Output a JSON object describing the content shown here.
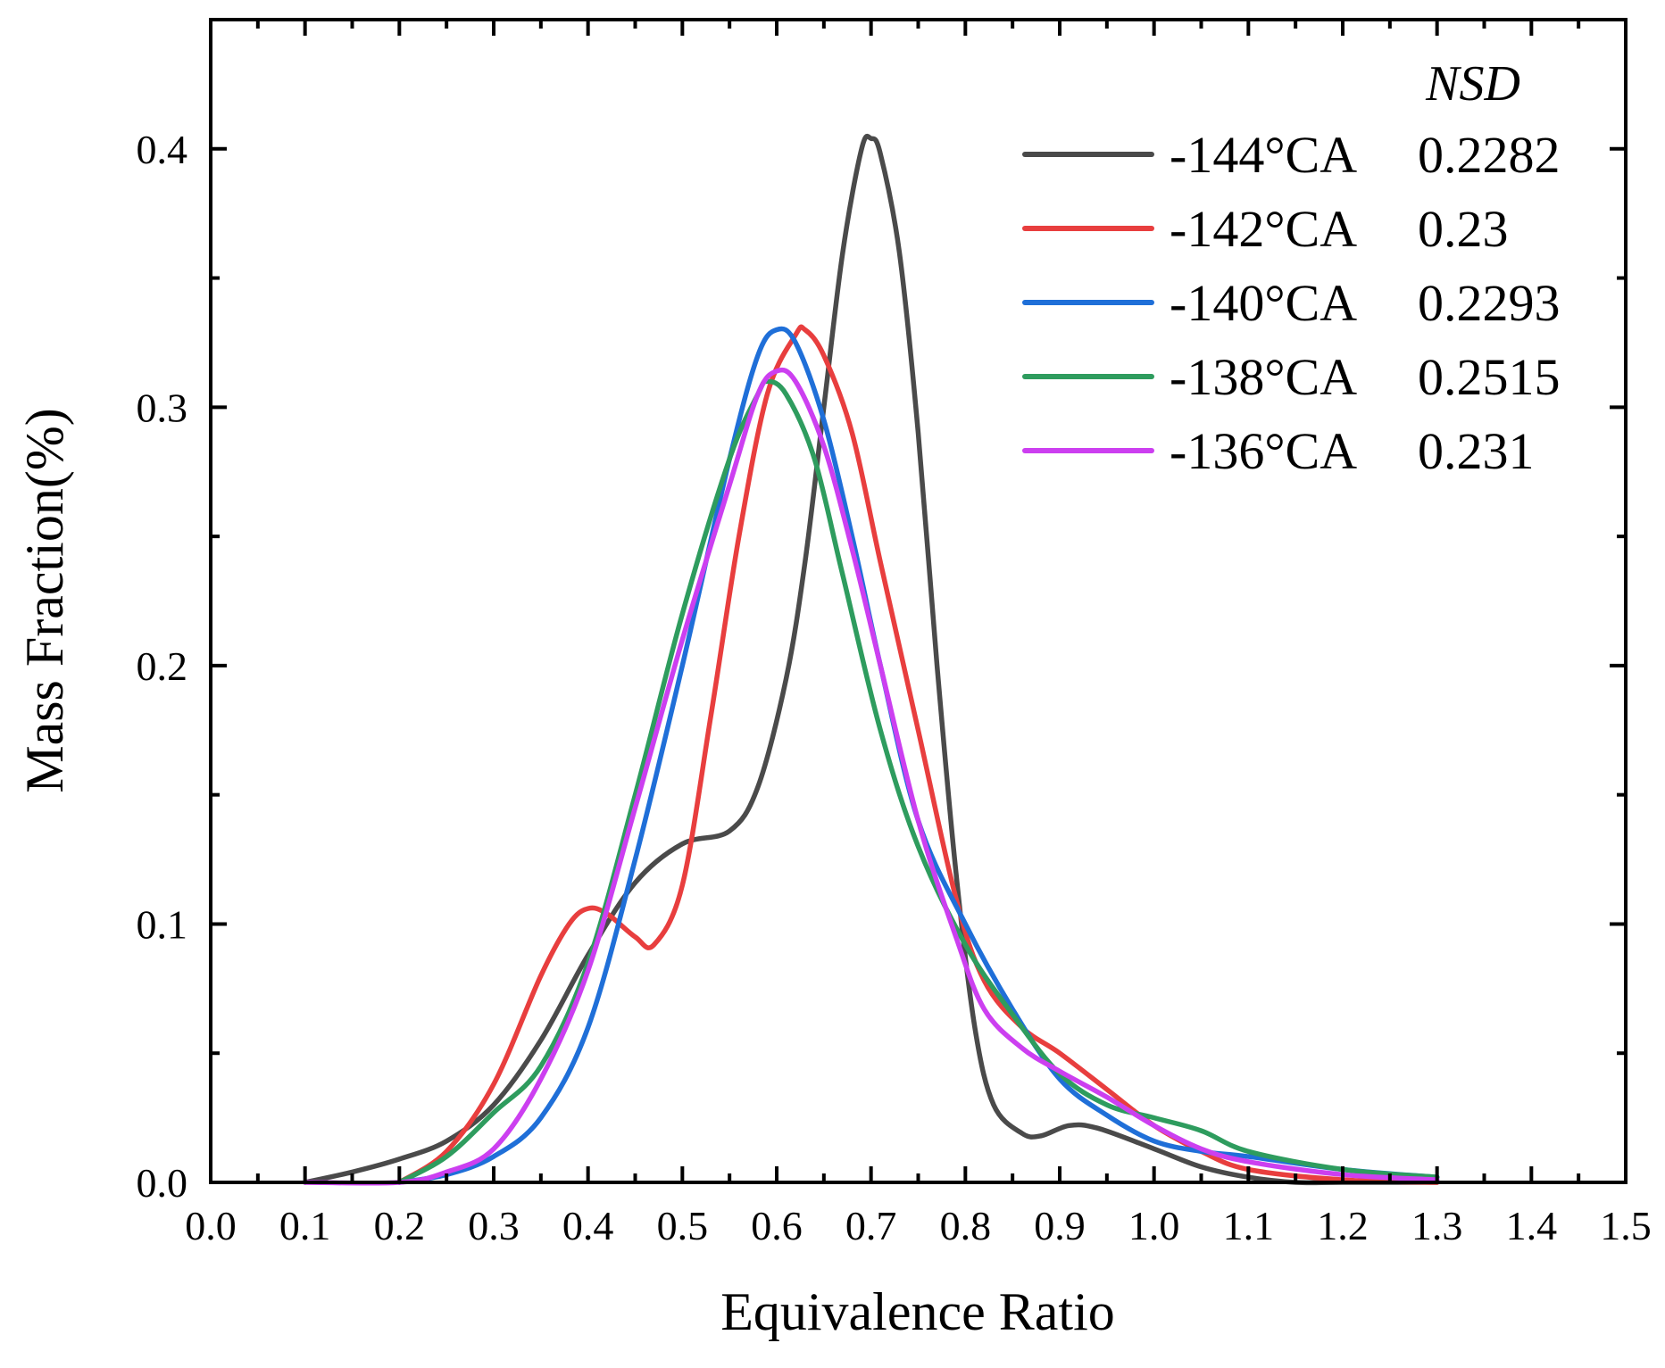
{
  "chart_data": {
    "type": "line",
    "title": "",
    "xlabel": "Equivalence Ratio",
    "ylabel": "Mass Fraction(%)",
    "xlim": [
      0.0,
      1.5
    ],
    "ylim": [
      0.0,
      0.45
    ],
    "x_ticks": [
      "0.0",
      "0.1",
      "0.2",
      "0.3",
      "0.4",
      "0.5",
      "0.6",
      "0.7",
      "0.8",
      "0.9",
      "1.0",
      "1.1",
      "1.2",
      "1.3",
      "1.4",
      "1.5"
    ],
    "y_ticks": [
      "0.0",
      "0.1",
      "0.2",
      "0.3",
      "0.4"
    ],
    "grid": false,
    "legend_placement": "top-right",
    "legend_title": "NSD",
    "series": [
      {
        "name": "-144°CA",
        "nsd": "0.2282",
        "color": "#4a4a4a",
        "points": [
          [
            0.1,
            0.0
          ],
          [
            0.15,
            0.004
          ],
          [
            0.2,
            0.009
          ],
          [
            0.25,
            0.016
          ],
          [
            0.3,
            0.03
          ],
          [
            0.35,
            0.055
          ],
          [
            0.4,
            0.088
          ],
          [
            0.45,
            0.116
          ],
          [
            0.5,
            0.131
          ],
          [
            0.55,
            0.136
          ],
          [
            0.58,
            0.153
          ],
          [
            0.61,
            0.195
          ],
          [
            0.63,
            0.24
          ],
          [
            0.65,
            0.3
          ],
          [
            0.67,
            0.36
          ],
          [
            0.69,
            0.4
          ],
          [
            0.7,
            0.404
          ],
          [
            0.71,
            0.398
          ],
          [
            0.73,
            0.36
          ],
          [
            0.75,
            0.29
          ],
          [
            0.77,
            0.2
          ],
          [
            0.79,
            0.12
          ],
          [
            0.81,
            0.06
          ],
          [
            0.83,
            0.03
          ],
          [
            0.86,
            0.019
          ],
          [
            0.88,
            0.018
          ],
          [
            0.91,
            0.022
          ],
          [
            0.94,
            0.021
          ],
          [
            1.0,
            0.013
          ],
          [
            1.05,
            0.006
          ],
          [
            1.1,
            0.002
          ],
          [
            1.15,
            0.0
          ],
          [
            1.2,
            0.0
          ],
          [
            1.3,
            0.0
          ]
        ]
      },
      {
        "name": "-142°CA",
        "nsd": "0.23",
        "color": "#e83e3e",
        "points": [
          [
            0.2,
            0.0
          ],
          [
            0.25,
            0.012
          ],
          [
            0.3,
            0.038
          ],
          [
            0.35,
            0.08
          ],
          [
            0.38,
            0.1
          ],
          [
            0.4,
            0.106
          ],
          [
            0.42,
            0.104
          ],
          [
            0.45,
            0.095
          ],
          [
            0.47,
            0.092
          ],
          [
            0.5,
            0.115
          ],
          [
            0.53,
            0.18
          ],
          [
            0.56,
            0.25
          ],
          [
            0.59,
            0.305
          ],
          [
            0.62,
            0.328
          ],
          [
            0.63,
            0.33
          ],
          [
            0.65,
            0.32
          ],
          [
            0.68,
            0.29
          ],
          [
            0.71,
            0.24
          ],
          [
            0.75,
            0.175
          ],
          [
            0.79,
            0.11
          ],
          [
            0.82,
            0.078
          ],
          [
            0.86,
            0.06
          ],
          [
            0.9,
            0.05
          ],
          [
            0.95,
            0.036
          ],
          [
            1.0,
            0.022
          ],
          [
            1.05,
            0.012
          ],
          [
            1.1,
            0.005
          ],
          [
            1.2,
            0.001
          ],
          [
            1.3,
            0.0
          ]
        ]
      },
      {
        "name": "-140°CA",
        "nsd": "0.2293",
        "color": "#1f6fd8",
        "points": [
          [
            0.2,
            0.0
          ],
          [
            0.25,
            0.003
          ],
          [
            0.3,
            0.01
          ],
          [
            0.35,
            0.025
          ],
          [
            0.4,
            0.06
          ],
          [
            0.45,
            0.125
          ],
          [
            0.5,
            0.2
          ],
          [
            0.55,
            0.28
          ],
          [
            0.58,
            0.32
          ],
          [
            0.6,
            0.33
          ],
          [
            0.62,
            0.325
          ],
          [
            0.65,
            0.295
          ],
          [
            0.68,
            0.25
          ],
          [
            0.71,
            0.2
          ],
          [
            0.75,
            0.14
          ],
          [
            0.8,
            0.1
          ],
          [
            0.85,
            0.067
          ],
          [
            0.9,
            0.04
          ],
          [
            0.95,
            0.026
          ],
          [
            1.0,
            0.016
          ],
          [
            1.05,
            0.012
          ],
          [
            1.1,
            0.01
          ],
          [
            1.2,
            0.005
          ],
          [
            1.3,
            0.002
          ]
        ]
      },
      {
        "name": "-138°CA",
        "nsd": "0.2515",
        "color": "#2e9c5e",
        "points": [
          [
            0.2,
            0.0
          ],
          [
            0.25,
            0.01
          ],
          [
            0.3,
            0.027
          ],
          [
            0.35,
            0.045
          ],
          [
            0.4,
            0.085
          ],
          [
            0.45,
            0.15
          ],
          [
            0.5,
            0.22
          ],
          [
            0.55,
            0.28
          ],
          [
            0.58,
            0.305
          ],
          [
            0.59,
            0.31
          ],
          [
            0.61,
            0.305
          ],
          [
            0.64,
            0.28
          ],
          [
            0.67,
            0.235
          ],
          [
            0.71,
            0.175
          ],
          [
            0.75,
            0.13
          ],
          [
            0.8,
            0.092
          ],
          [
            0.85,
            0.065
          ],
          [
            0.9,
            0.042
          ],
          [
            0.95,
            0.03
          ],
          [
            1.0,
            0.025
          ],
          [
            1.05,
            0.02
          ],
          [
            1.1,
            0.012
          ],
          [
            1.2,
            0.005
          ],
          [
            1.3,
            0.002
          ]
        ]
      },
      {
        "name": "-136°CA",
        "nsd": "0.231",
        "color": "#cc3ff0",
        "points": [
          [
            0.1,
            0.0
          ],
          [
            0.2,
            0.0
          ],
          [
            0.25,
            0.004
          ],
          [
            0.3,
            0.013
          ],
          [
            0.35,
            0.04
          ],
          [
            0.4,
            0.082
          ],
          [
            0.45,
            0.145
          ],
          [
            0.5,
            0.21
          ],
          [
            0.55,
            0.27
          ],
          [
            0.58,
            0.305
          ],
          [
            0.6,
            0.314
          ],
          [
            0.62,
            0.31
          ],
          [
            0.65,
            0.285
          ],
          [
            0.68,
            0.245
          ],
          [
            0.71,
            0.2
          ],
          [
            0.75,
            0.14
          ],
          [
            0.79,
            0.095
          ],
          [
            0.82,
            0.067
          ],
          [
            0.86,
            0.052
          ],
          [
            0.9,
            0.043
          ],
          [
            0.95,
            0.033
          ],
          [
            1.0,
            0.022
          ],
          [
            1.05,
            0.013
          ],
          [
            1.1,
            0.008
          ],
          [
            1.2,
            0.003
          ],
          [
            1.3,
            0.001
          ]
        ]
      }
    ]
  }
}
